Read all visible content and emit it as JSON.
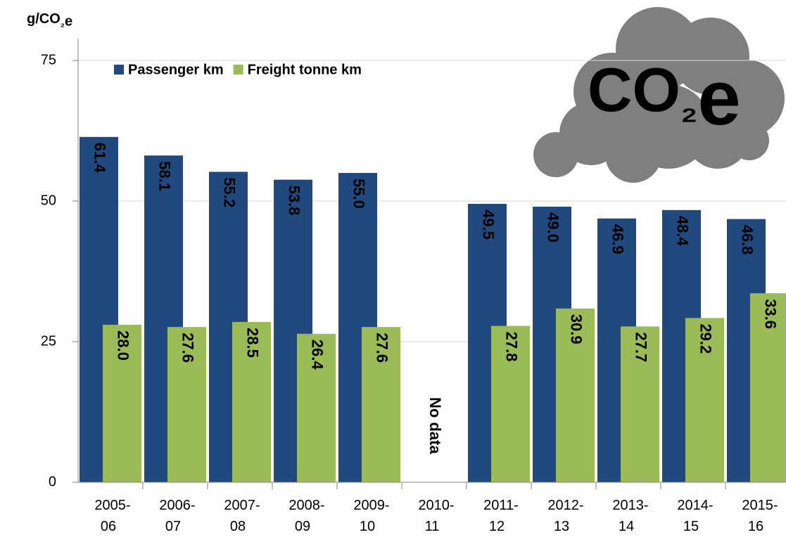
{
  "chart_data": {
    "type": "bar",
    "y_label": "g/CO₂e",
    "categories": [
      "2005-06",
      "2006-07",
      "2007-08",
      "2008-09",
      "2009-10",
      "2010-11",
      "2011-12",
      "2012-13",
      "2013-14",
      "2014-15",
      "2015-16"
    ],
    "series": [
      {
        "name": "Passenger km",
        "color": "#22497d",
        "values": [
          61.4,
          58.1,
          55.2,
          53.8,
          55.0,
          null,
          49.5,
          49.0,
          46.9,
          48.4,
          46.8
        ],
        "value_labels": [
          "61.4",
          "58.1",
          "55.2",
          "53.8",
          "55.0",
          null,
          "49.5",
          "49.0",
          "46.9",
          "48.4",
          "46.8"
        ]
      },
      {
        "name": "Freight tonne km",
        "color": "#9bbb59",
        "values": [
          28.0,
          27.6,
          28.5,
          26.4,
          27.6,
          null,
          27.8,
          30.9,
          27.7,
          29.2,
          33.6
        ],
        "value_labels": [
          "28.0",
          "27.6",
          "28.5",
          "26.4",
          "27.6",
          null,
          "27.8",
          "30.9",
          "27.7",
          "29.2",
          "33.6"
        ]
      }
    ],
    "ylim": [
      0,
      75
    ],
    "yticks": [
      0,
      25,
      50,
      75
    ],
    "grid": true,
    "legend": "top-left",
    "annotations": [
      "No data",
      "CO₂e"
    ]
  }
}
